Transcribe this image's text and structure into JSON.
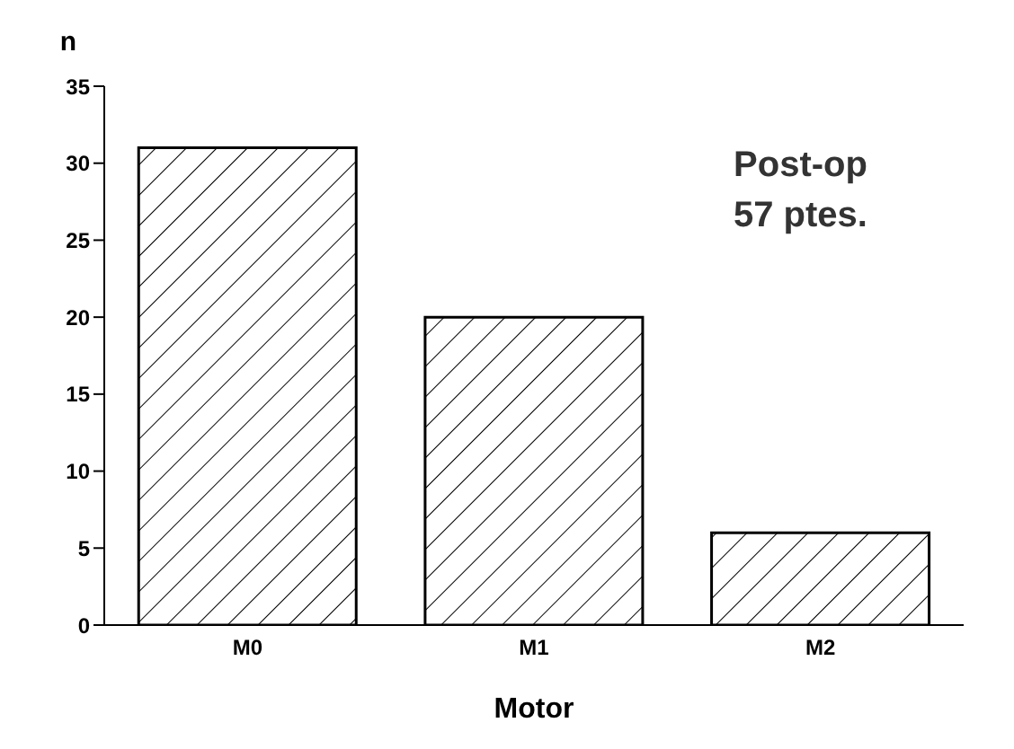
{
  "chart_data": {
    "type": "bar",
    "ylabel": "n",
    "xlabel": "Motor",
    "categories": [
      "M0",
      "M1",
      "M2"
    ],
    "values": [
      31,
      20,
      6
    ],
    "color": "#000000",
    "ylim": [
      0,
      35
    ],
    "yticks": [
      0,
      5,
      10,
      15,
      20,
      25,
      30,
      35
    ],
    "annotations": [
      "Post-op",
      "57 ptes."
    ]
  }
}
